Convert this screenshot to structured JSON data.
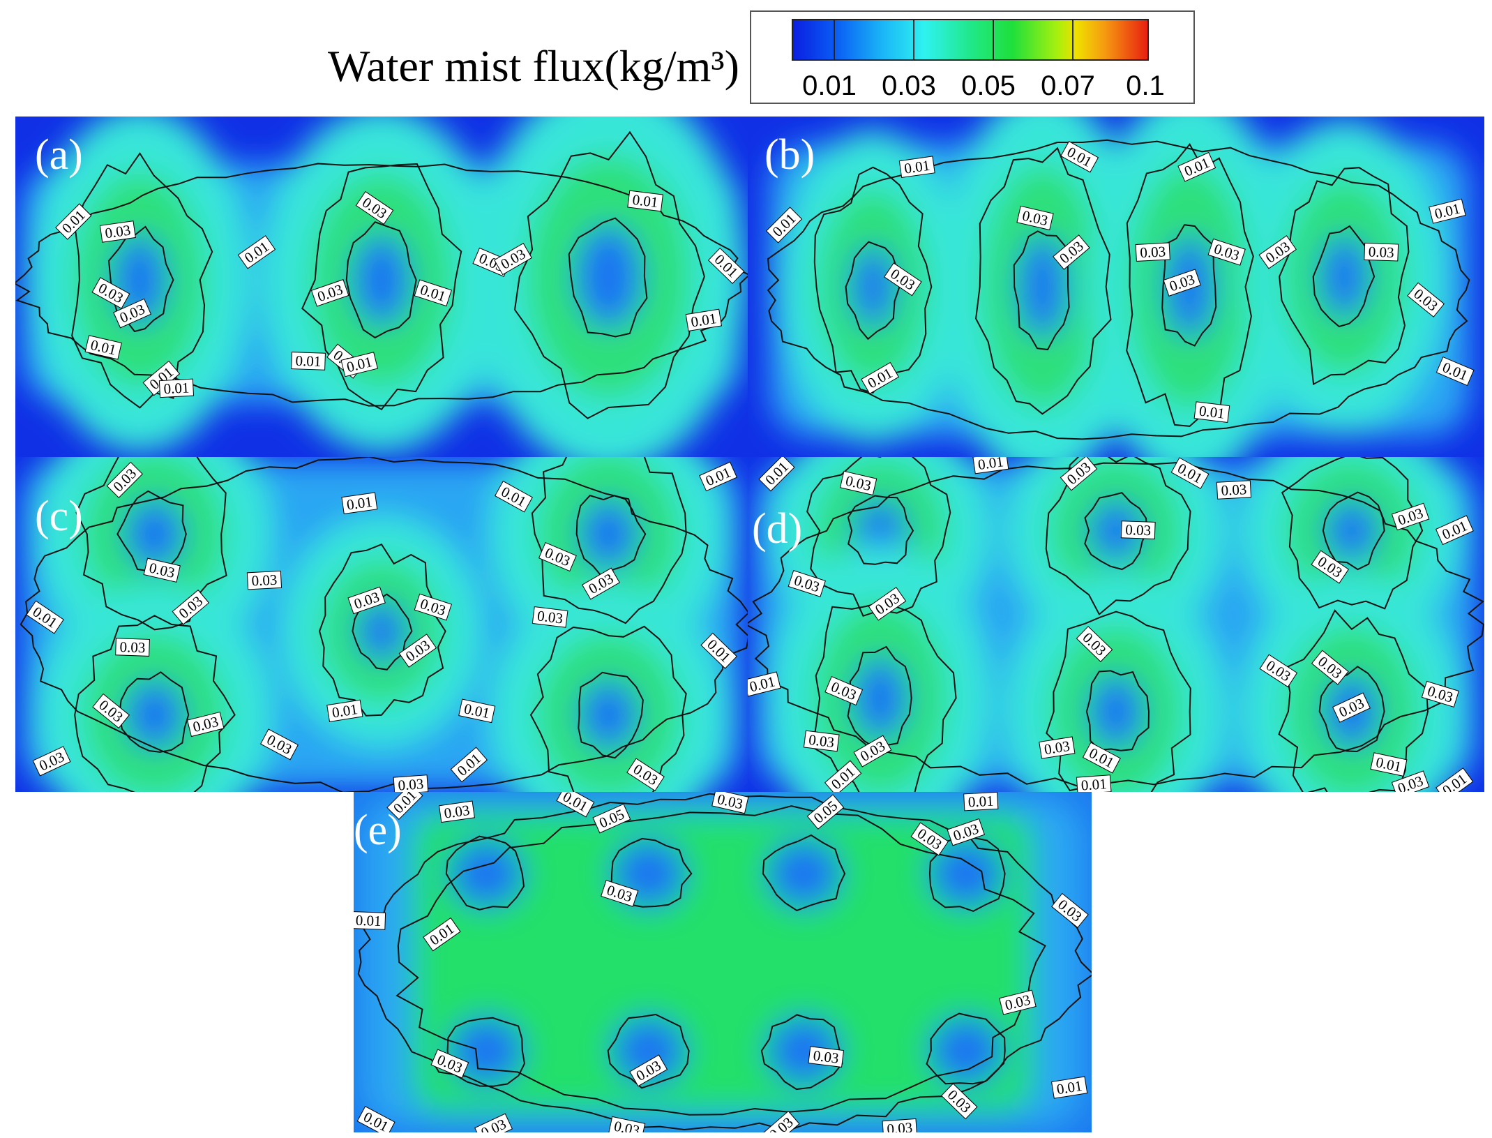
{
  "chart_data": {
    "type": "heatmap",
    "title": "Water mist flux(kg/m³)",
    "colorbar": {
      "ticks": [
        "0.01",
        "0.03",
        "0.05",
        "0.07",
        "0.1"
      ],
      "levels": [
        0.01,
        0.03,
        0.05,
        0.07,
        0.1
      ],
      "colors": [
        "#0a1fe0",
        "#1ab4f7",
        "#20e88a",
        "#a0f010",
        "#e82010"
      ]
    },
    "panels": [
      {
        "label": "(a)",
        "background": "#1030e6",
        "rings": [
          {
            "x": 0.17,
            "y": 0.48,
            "rx": 0.12,
            "ry": 0.44
          },
          {
            "x": 0.5,
            "y": 0.48,
            "rx": 0.13,
            "ry": 0.44
          },
          {
            "x": 0.81,
            "y": 0.47,
            "rx": 0.15,
            "ry": 0.5
          }
        ],
        "contour_labels": [
          "0.01",
          "0.03",
          "0.03",
          "0.03",
          "0.01",
          "0.01",
          "0.01",
          "0.03",
          "0.03",
          "0.01",
          "0.01",
          "0.01",
          "0.01",
          "0.01",
          "0.03",
          "0.03",
          "0.01",
          "0.01",
          "0.01"
        ]
      },
      {
        "label": "(b)",
        "background": "#1030e6",
        "rings": [
          {
            "x": 0.17,
            "y": 0.5,
            "rx": 0.1,
            "ry": 0.4
          },
          {
            "x": 0.4,
            "y": 0.5,
            "rx": 0.11,
            "ry": 0.5
          },
          {
            "x": 0.6,
            "y": 0.5,
            "rx": 0.11,
            "ry": 0.5
          },
          {
            "x": 0.81,
            "y": 0.47,
            "rx": 0.11,
            "ry": 0.4
          }
        ],
        "contour_labels": [
          "0.01",
          "0.01",
          "0.01",
          "0.01",
          "0.03",
          "0.03",
          "0.03",
          "0.03",
          "0.03",
          "0.03",
          "0.03",
          "0.03",
          "0.03",
          "0.01",
          "0.01",
          "0.01",
          "0.01"
        ]
      },
      {
        "label": "(c)",
        "background": "#1030e6",
        "rings": [
          {
            "x": 0.19,
            "y": 0.23,
            "rx": 0.13,
            "ry": 0.34
          },
          {
            "x": 0.19,
            "y": 0.77,
            "rx": 0.13,
            "ry": 0.34
          },
          {
            "x": 0.5,
            "y": 0.52,
            "rx": 0.11,
            "ry": 0.3
          },
          {
            "x": 0.81,
            "y": 0.23,
            "rx": 0.13,
            "ry": 0.34
          },
          {
            "x": 0.81,
            "y": 0.77,
            "rx": 0.13,
            "ry": 0.34
          }
        ],
        "contour_labels": [
          "0.03",
          "0.01",
          "0.01",
          "0.01",
          "0.03",
          "0.03",
          "0.03",
          "0.01",
          "0.03",
          "0.03",
          "0.03",
          "0.03",
          "0.03",
          "0.03",
          "0.03",
          "0.03",
          "0.03",
          "0.01",
          "0.01",
          "0.03",
          "0.03",
          "0.01",
          "0.01",
          "0.03",
          "0.03"
        ]
      },
      {
        "label": "(d)",
        "background": "#1030e6",
        "rings": [
          {
            "x": 0.18,
            "y": 0.22,
            "rx": 0.12,
            "ry": 0.3
          },
          {
            "x": 0.18,
            "y": 0.72,
            "rx": 0.12,
            "ry": 0.4
          },
          {
            "x": 0.5,
            "y": 0.22,
            "rx": 0.12,
            "ry": 0.3
          },
          {
            "x": 0.5,
            "y": 0.76,
            "rx": 0.12,
            "ry": 0.36
          },
          {
            "x": 0.82,
            "y": 0.22,
            "rx": 0.12,
            "ry": 0.3
          },
          {
            "x": 0.82,
            "y": 0.76,
            "rx": 0.12,
            "ry": 0.36
          }
        ],
        "contour_labels": [
          "0.01",
          "0.01",
          "0.01",
          "0.01",
          "0.03",
          "0.03",
          "0.03",
          "0.03",
          "0.03",
          "0.03",
          "0.03",
          "0.03",
          "0.03",
          "0.01",
          "0.03",
          "0.03",
          "0.03",
          "0.03",
          "0.03",
          "0.01",
          "0.03",
          "0.01",
          "0.01",
          "0.01",
          "0.03",
          "0.03",
          "0.03",
          "0.01"
        ]
      },
      {
        "label": "(e)",
        "background": "#1c7cf0",
        "fill_level": "#22e06a",
        "holes": [
          {
            "x": 0.18,
            "y": 0.24,
            "rx": 0.05,
            "ry": 0.1
          },
          {
            "x": 0.4,
            "y": 0.24,
            "rx": 0.05,
            "ry": 0.1
          },
          {
            "x": 0.61,
            "y": 0.24,
            "rx": 0.05,
            "ry": 0.1
          },
          {
            "x": 0.83,
            "y": 0.24,
            "rx": 0.05,
            "ry": 0.1
          },
          {
            "x": 0.18,
            "y": 0.76,
            "rx": 0.05,
            "ry": 0.1
          },
          {
            "x": 0.4,
            "y": 0.76,
            "rx": 0.05,
            "ry": 0.1
          },
          {
            "x": 0.61,
            "y": 0.76,
            "rx": 0.05,
            "ry": 0.1
          },
          {
            "x": 0.83,
            "y": 0.76,
            "rx": 0.05,
            "ry": 0.1
          }
        ],
        "contour_labels": [
          "0.01",
          "0.03",
          "0.01",
          "0.05",
          "0.03",
          "0.05",
          "0.01",
          "0.03",
          "0.03",
          "0.03",
          "0.01",
          "0.01",
          "0.03",
          "0.03",
          "0.03",
          "0.03",
          "0.03",
          "0.03",
          "0.01",
          "0.01",
          "0.03",
          "0.03",
          "0.03",
          "0.03"
        ]
      }
    ]
  }
}
